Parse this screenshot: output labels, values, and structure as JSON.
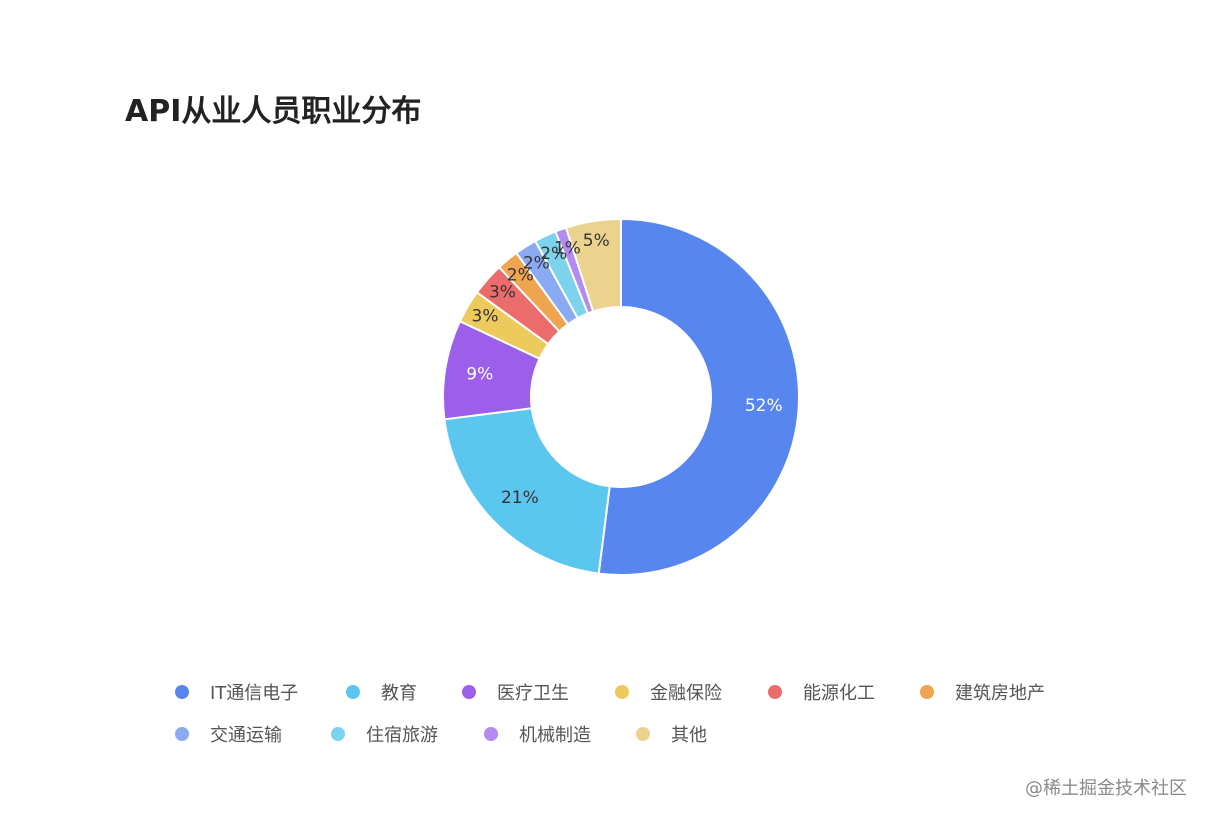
{
  "chart_data": {
    "type": "pie",
    "title": "API从业人员职业分布",
    "categories": [
      "IT通信电子",
      "教育",
      "医疗卫生",
      "金融保险",
      "能源化工",
      "建筑房地产",
      "交通运输",
      "住宿旅游",
      "机械制造",
      "其他"
    ],
    "values": [
      52,
      21,
      9,
      3,
      3,
      2,
      2,
      2,
      1,
      5
    ],
    "labels": [
      "52%",
      "21%",
      "9%",
      "3%",
      "3%",
      "2%",
      "2%",
      "2%",
      "1%",
      "5%"
    ],
    "colors": [
      "#5686EE",
      "#5BC7EE",
      "#9B5FE9",
      "#EDCA5C",
      "#EC6C6C",
      "#EFA54F",
      "#8AABF3",
      "#7DD3EE",
      "#B28AF0",
      "#EBD28E"
    ],
    "label_colors": [
      "#ffffff",
      "#333333",
      "#ffffff",
      "#333333",
      "#333333",
      "#333333",
      "#333333",
      "#333333",
      "#333333",
      "#333333"
    ],
    "legend_position": "bottom",
    "donut": true
  },
  "watermark": "@稀土掘金技术社区"
}
